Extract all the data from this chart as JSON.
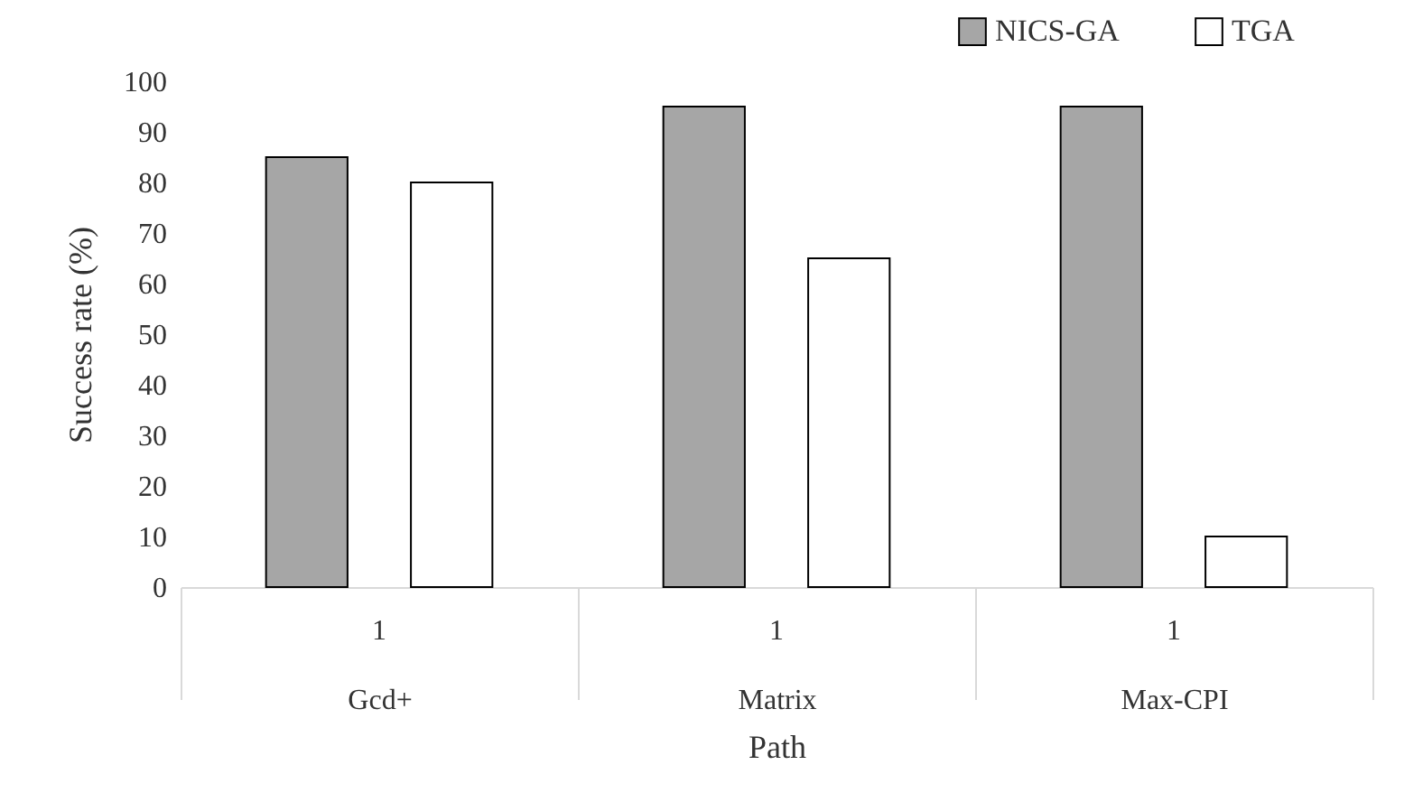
{
  "chart_data": {
    "type": "bar",
    "xlabel": "Path",
    "ylabel": "Success rate (%)",
    "categories": [
      "Gcd+",
      "Matrix",
      "Max-CPI"
    ],
    "series": [
      {
        "name": "NICS-GA",
        "color": "#a6a6a6",
        "values": [
          85,
          95,
          95
        ]
      },
      {
        "name": "TGA",
        "color": "#ffffff",
        "values": [
          80,
          65,
          10
        ]
      }
    ],
    "annotations": [
      "1",
      "1",
      "1"
    ],
    "ylim": [
      0,
      100
    ],
    "yticks": [
      0,
      10,
      20,
      30,
      40,
      50,
      60,
      70,
      80,
      90,
      100
    ],
    "grid": false,
    "legend": "top right"
  }
}
